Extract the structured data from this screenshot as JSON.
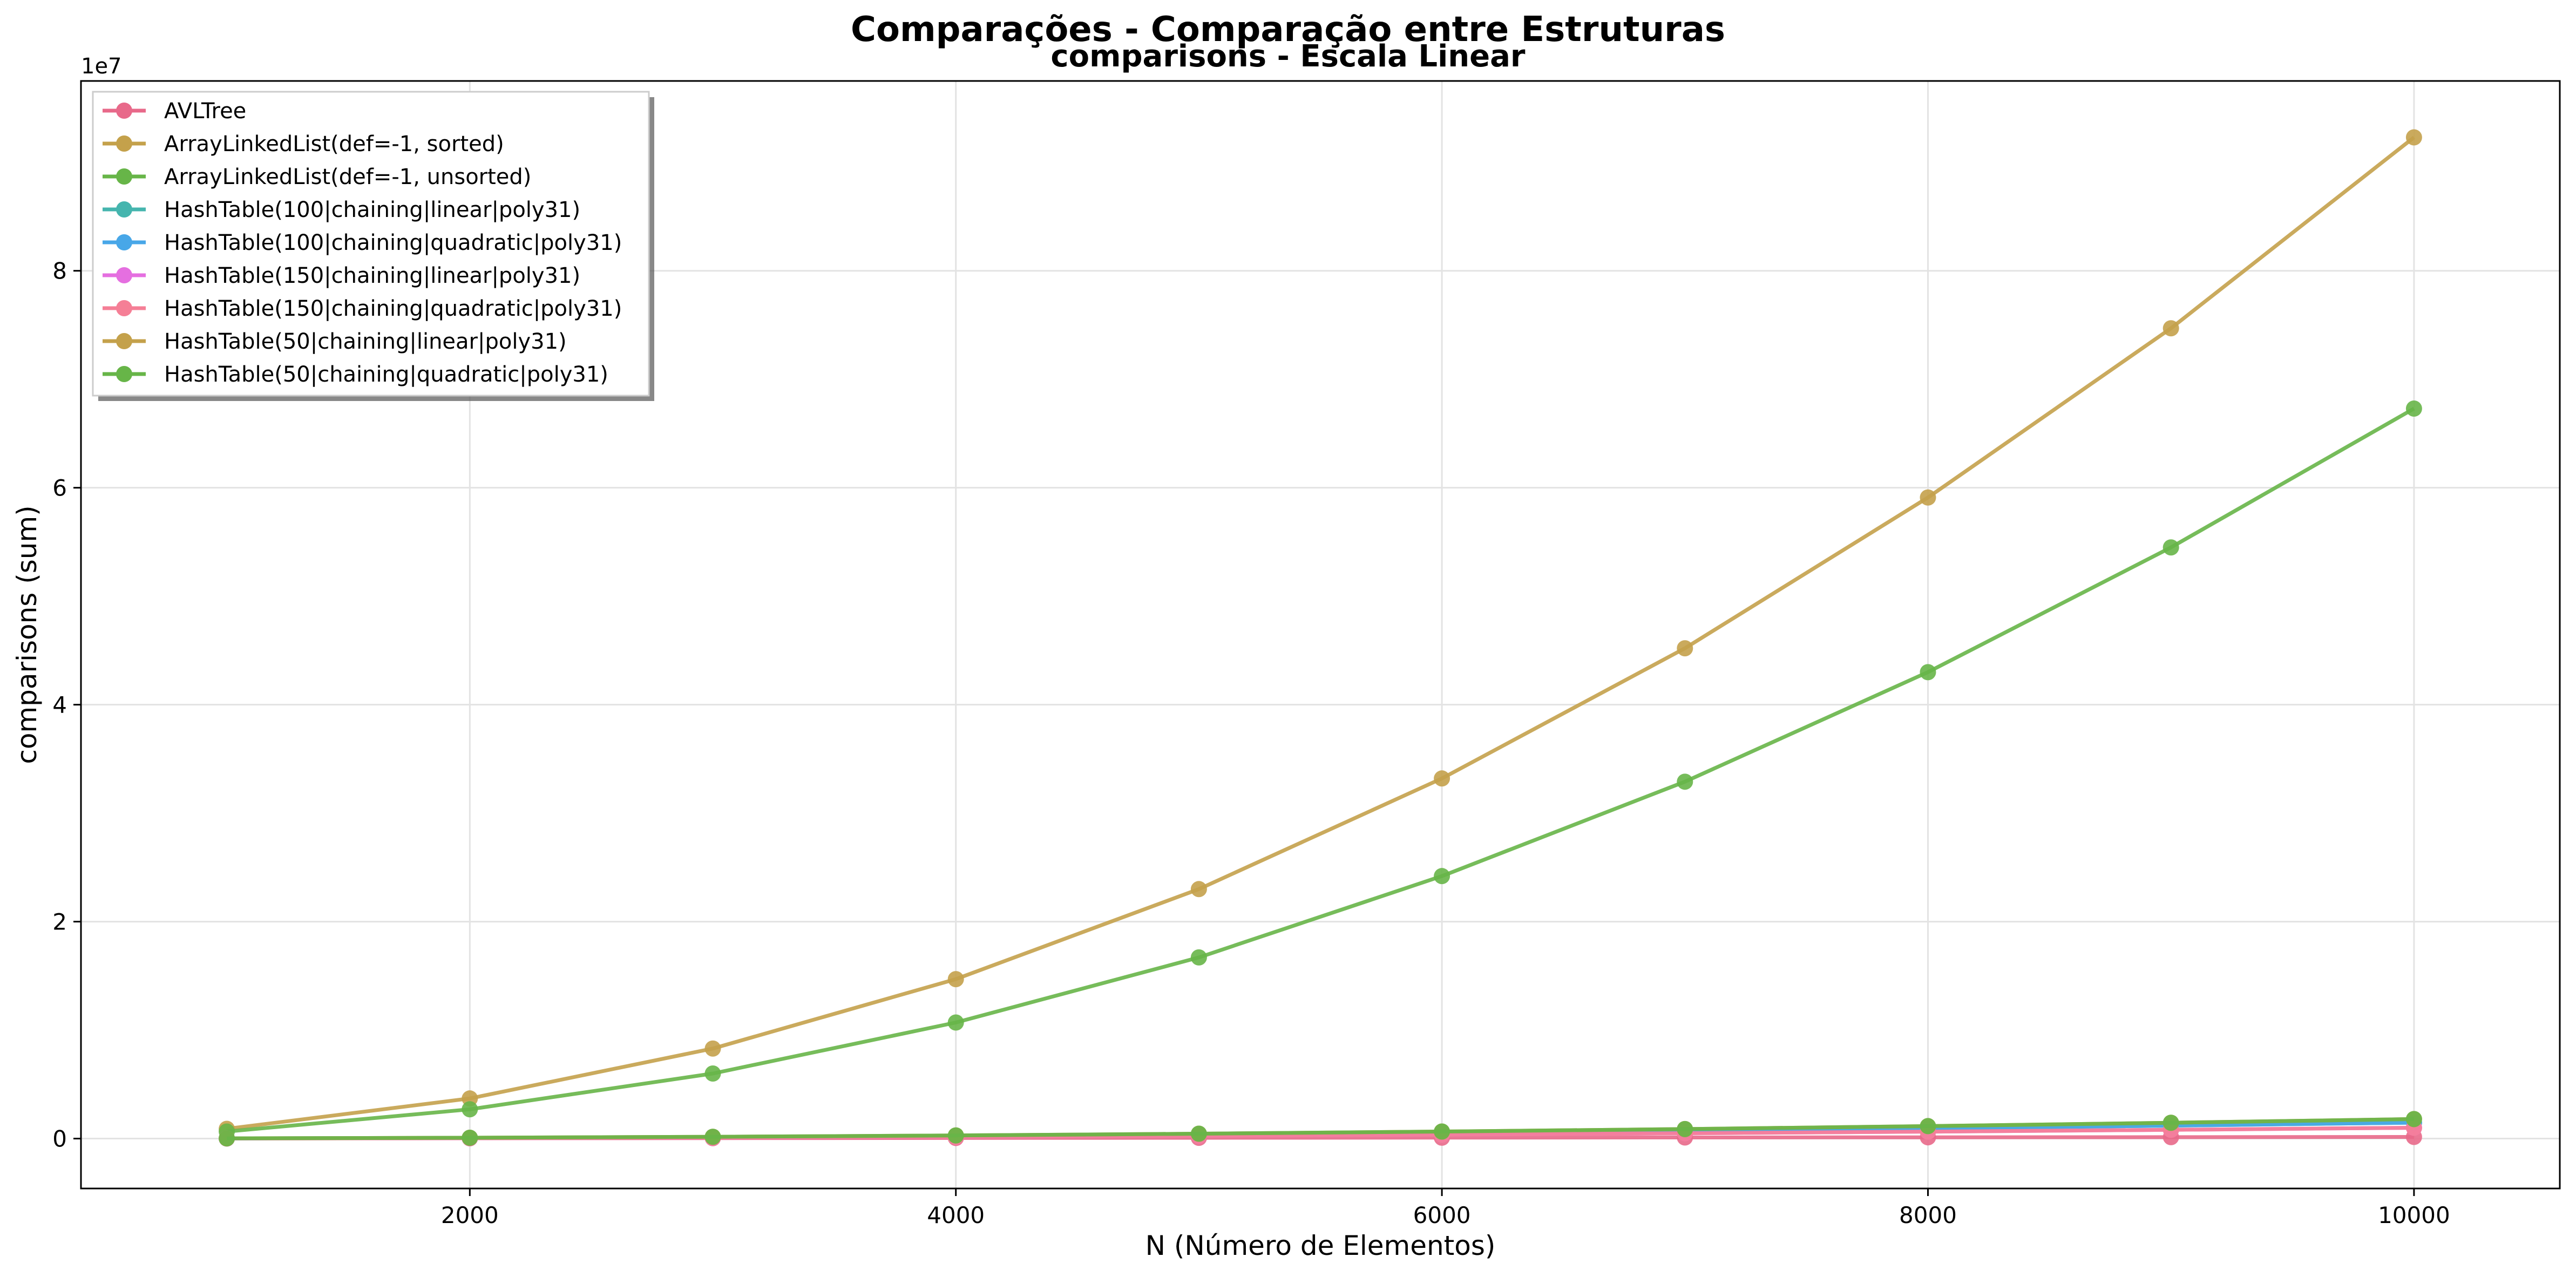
{
  "chart_data": {
    "type": "line",
    "suptitle": "Comparações - Comparação entre Estruturas",
    "title": "comparisons - Escala Linear",
    "xlabel": "N (Número de Elementos)",
    "ylabel": "comparisons (sum)",
    "y_offset_label": "1e7",
    "xlim": [
      400,
      10600
    ],
    "ylim": [
      -4600000,
      97500000
    ],
    "xticks": [
      2000,
      4000,
      6000,
      8000,
      10000
    ],
    "yticks": [
      0,
      20000000,
      40000000,
      60000000,
      80000000
    ],
    "ytick_labels": [
      "0",
      "2",
      "4",
      "6",
      "8"
    ],
    "grid": true,
    "legend_position": "top-left",
    "x": [
      1000,
      2000,
      3000,
      4000,
      5000,
      6000,
      7000,
      8000,
      9000,
      10000
    ],
    "series": [
      {
        "name": "AVLTree",
        "color": "#e8698a",
        "values": [
          12000,
          25000,
          40000,
          55000,
          70000,
          85000,
          100000,
          117000,
          133000,
          150000
        ]
      },
      {
        "name": "ArrayLinkedList(def=-1, sorted)",
        "color": "#c4a14b",
        "values": [
          900000,
          3700000,
          8300000,
          14700000,
          23000000,
          33200000,
          45200000,
          59100000,
          74700000,
          92300000
        ]
      },
      {
        "name": "ArrayLinkedList(def=-1, unsorted)",
        "color": "#67b548",
        "values": [
          650000,
          2700000,
          6000000,
          10700000,
          16700000,
          24200000,
          32900000,
          43000000,
          54500000,
          67300000
        ]
      },
      {
        "name": "HashTable(100|chaining|linear|poly31)",
        "color": "#45b5ae",
        "values": [
          15000,
          60000,
          135000,
          240000,
          370000,
          530000,
          720000,
          940000,
          1190000,
          1470000
        ]
      },
      {
        "name": "HashTable(100|chaining|quadratic|poly31)",
        "color": "#48a7e8",
        "values": [
          15000,
          60000,
          135000,
          240000,
          370000,
          530000,
          720000,
          940000,
          1190000,
          1470000
        ]
      },
      {
        "name": "HashTable(150|chaining|linear|poly31)",
        "color": "#e56fe0",
        "values": [
          10000,
          40000,
          90000,
          160000,
          250000,
          360000,
          490000,
          640000,
          810000,
          1000000
        ]
      },
      {
        "name": "HashTable(150|chaining|quadratic|poly31)",
        "color": "#f57f96",
        "values": [
          10000,
          40000,
          90000,
          160000,
          250000,
          360000,
          490000,
          640000,
          810000,
          1000000
        ]
      },
      {
        "name": "HashTable(50|chaining|linear|poly31)",
        "color": "#c4a14b",
        "values": [
          20000,
          75000,
          165000,
          290000,
          450000,
          650000,
          880000,
          1150000,
          1460000,
          1800000
        ]
      },
      {
        "name": "HashTable(50|chaining|quadratic|poly31)",
        "color": "#67b548",
        "values": [
          20000,
          75000,
          165000,
          290000,
          450000,
          650000,
          880000,
          1150000,
          1460000,
          1800000
        ]
      }
    ]
  }
}
